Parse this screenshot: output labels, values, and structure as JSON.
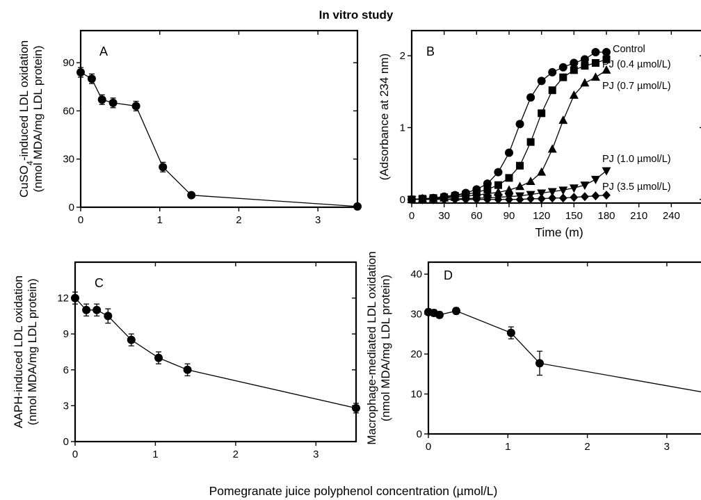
{
  "figure": {
    "title": "In vitro study",
    "shared_xlabel": "Pomegranate juice polyphenol concentration (µmol/L)"
  },
  "chart_data": [
    {
      "type": "line",
      "panel": "A",
      "ylabel_line1": "CuSO",
      "ylabel_sub": "4",
      "ylabel_line1_rest": "-induced LDL oxidation",
      "ylabel_line2": "(nmol MDA/mg LDL protein)",
      "xlim": [
        0,
        3.5
      ],
      "ylim": [
        0,
        110
      ],
      "xticks": [
        0,
        1,
        2,
        3
      ],
      "yticks": [
        0,
        30,
        60,
        90
      ],
      "series": [
        {
          "x": [
            0,
            0.14,
            0.27,
            0.41,
            0.7,
            1.04,
            1.4,
            3.5
          ],
          "y": [
            84,
            80,
            67,
            65,
            63,
            25,
            7.5,
            0.5
          ],
          "err": [
            3,
            3,
            3,
            3,
            3,
            3,
            1.5,
            1
          ],
          "marker": "circle"
        }
      ]
    },
    {
      "type": "line",
      "panel": "B",
      "ylabel": "(Adsorbance at 234 nm)",
      "xlabel": "Time (m)",
      "xlim": [
        0,
        270
      ],
      "ylim": [
        -0.05,
        2.35
      ],
      "xticks": [
        0,
        30,
        60,
        90,
        120,
        150,
        180,
        210,
        240
      ],
      "yticks": [
        0,
        1,
        2
      ],
      "series": [
        {
          "name": "Control",
          "marker": "circle",
          "x": [
            0,
            10,
            20,
            30,
            40,
            50,
            60,
            70,
            80,
            90,
            100,
            110,
            120,
            130,
            140,
            150,
            160,
            170,
            180
          ],
          "y": [
            0,
            0.01,
            0.02,
            0.04,
            0.06,
            0.09,
            0.14,
            0.22,
            0.38,
            0.65,
            1.05,
            1.42,
            1.65,
            1.77,
            1.84,
            1.9,
            1.95,
            2.05,
            2.05
          ]
        },
        {
          "name": "PJ (0.4 µmol/L)",
          "marker": "square",
          "x": [
            0,
            10,
            20,
            30,
            40,
            50,
            60,
            70,
            80,
            90,
            100,
            110,
            120,
            130,
            140,
            150,
            160,
            170,
            180
          ],
          "y": [
            0,
            0.01,
            0.02,
            0.03,
            0.05,
            0.07,
            0.1,
            0.14,
            0.2,
            0.3,
            0.47,
            0.8,
            1.2,
            1.52,
            1.7,
            1.8,
            1.86,
            1.9,
            1.95
          ]
        },
        {
          "name": "PJ (0.7 µmol/L)",
          "marker": "triangle",
          "x": [
            0,
            10,
            20,
            30,
            40,
            50,
            60,
            70,
            80,
            90,
            100,
            110,
            120,
            130,
            140,
            150,
            160,
            170,
            180
          ],
          "y": [
            0,
            0.01,
            0.01,
            0.02,
            0.03,
            0.05,
            0.06,
            0.08,
            0.1,
            0.13,
            0.18,
            0.25,
            0.38,
            0.7,
            1.1,
            1.45,
            1.62,
            1.7,
            1.8
          ]
        },
        {
          "name": "PJ (1.0 µmol/L)",
          "marker": "triangle-down",
          "x": [
            0,
            10,
            20,
            30,
            40,
            50,
            60,
            70,
            80,
            90,
            100,
            110,
            120,
            130,
            140,
            150,
            160,
            170,
            180
          ],
          "y": [
            0,
            0,
            0,
            0,
            0.01,
            0.01,
            0.02,
            0.02,
            0.03,
            0.04,
            0.05,
            0.07,
            0.09,
            0.11,
            0.13,
            0.16,
            0.2,
            0.28,
            0.4
          ]
        },
        {
          "name": "PJ (3.5 µmol/L)",
          "marker": "diamond",
          "x": [
            0,
            10,
            20,
            30,
            40,
            50,
            60,
            70,
            80,
            90,
            100,
            110,
            120,
            130,
            140,
            150,
            160,
            170,
            180
          ],
          "y": [
            0,
            0,
            0,
            0,
            0,
            0,
            0,
            0,
            0,
            0,
            0,
            0.01,
            0.01,
            0.02,
            0.02,
            0.03,
            0.04,
            0.05,
            0.06
          ]
        }
      ]
    },
    {
      "type": "line",
      "panel": "C",
      "ylabel_line1": "AAPH-induced LDL oxidation",
      "ylabel_line2": "(nmol MDA/mg LDL protein)",
      "xlim": [
        0,
        3.5
      ],
      "ylim": [
        0,
        15
      ],
      "xticks": [
        0,
        1,
        2,
        3
      ],
      "yticks": [
        0,
        3,
        6,
        9,
        12
      ],
      "series": [
        {
          "x": [
            0,
            0.14,
            0.27,
            0.41,
            0.7,
            1.04,
            1.4,
            3.5
          ],
          "y": [
            12,
            11,
            11,
            10.5,
            8.5,
            7,
            6,
            2.8
          ],
          "err": [
            0.5,
            0.5,
            0.5,
            0.6,
            0.5,
            0.5,
            0.5,
            0.4
          ],
          "marker": "circle"
        }
      ]
    },
    {
      "type": "line",
      "panel": "D",
      "ylabel_line1": "Macrophage-mediated LDL oxidation",
      "ylabel_line2": "(nmol MDA/mg LDL protein)",
      "xlim": [
        0,
        3.5
      ],
      "ylim": [
        0,
        43
      ],
      "xticks": [
        0,
        1,
        2,
        3
      ],
      "yticks": [
        0,
        10,
        20,
        30,
        40
      ],
      "series": [
        {
          "x": [
            0,
            0.07,
            0.14,
            0.35,
            1.04,
            1.4,
            3.5
          ],
          "y": [
            30.5,
            30.3,
            29.8,
            30.8,
            25.3,
            17.7,
            10.3
          ],
          "err": [
            0.8,
            0.8,
            0.8,
            0.8,
            1.5,
            3,
            0.6
          ],
          "marker": "circle"
        }
      ]
    }
  ]
}
